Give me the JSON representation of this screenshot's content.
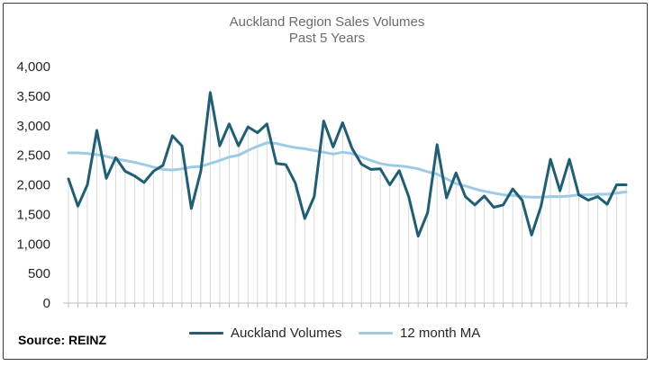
{
  "chart_data": {
    "type": "line",
    "title": "Auckland Region Sales Volumes",
    "subtitle": "Past 5 Years",
    "ylim": [
      0,
      4000
    ],
    "yticks": [
      0,
      500,
      1000,
      1500,
      2000,
      2500,
      3000,
      3500,
      4000
    ],
    "ytick_labels": [
      "0",
      "500",
      "1,000",
      "1,500",
      "2,000",
      "2,500",
      "3,000",
      "3,500",
      "4,000"
    ],
    "grid": false,
    "legend_position": "bottom",
    "series": [
      {
        "name": "Auckland Volumes",
        "color": "#1e5f75",
        "values": [
          2100,
          1640,
          2000,
          2920,
          2110,
          2460,
          2230,
          2150,
          2040,
          2230,
          2330,
          2830,
          2660,
          1600,
          2230,
          3560,
          2660,
          3030,
          2660,
          2980,
          2880,
          3030,
          2360,
          2340,
          2030,
          1430,
          1800,
          3080,
          2640,
          3050,
          2620,
          2350,
          2260,
          2270,
          2000,
          2240,
          1800,
          1130,
          1530,
          2680,
          1780,
          2200,
          1800,
          1660,
          1810,
          1620,
          1660,
          1930,
          1740,
          1150,
          1640,
          2430,
          1900,
          2430,
          1830,
          1740,
          1800,
          1670,
          2000,
          2000
        ]
      },
      {
        "name": "12 month MA",
        "color": "#9dcbe6",
        "values": [
          2540,
          2540,
          2530,
          2510,
          2480,
          2440,
          2410,
          2380,
          2340,
          2300,
          2260,
          2250,
          2270,
          2300,
          2310,
          2360,
          2410,
          2470,
          2500,
          2580,
          2650,
          2710,
          2700,
          2660,
          2630,
          2610,
          2580,
          2550,
          2520,
          2550,
          2530,
          2470,
          2410,
          2360,
          2330,
          2320,
          2300,
          2270,
          2220,
          2180,
          2100,
          2020,
          1980,
          1930,
          1890,
          1860,
          1830,
          1820,
          1800,
          1790,
          1790,
          1800,
          1800,
          1810,
          1830,
          1830,
          1840,
          1840,
          1860,
          1880
        ]
      }
    ]
  },
  "source_label": "Source:  REINZ"
}
